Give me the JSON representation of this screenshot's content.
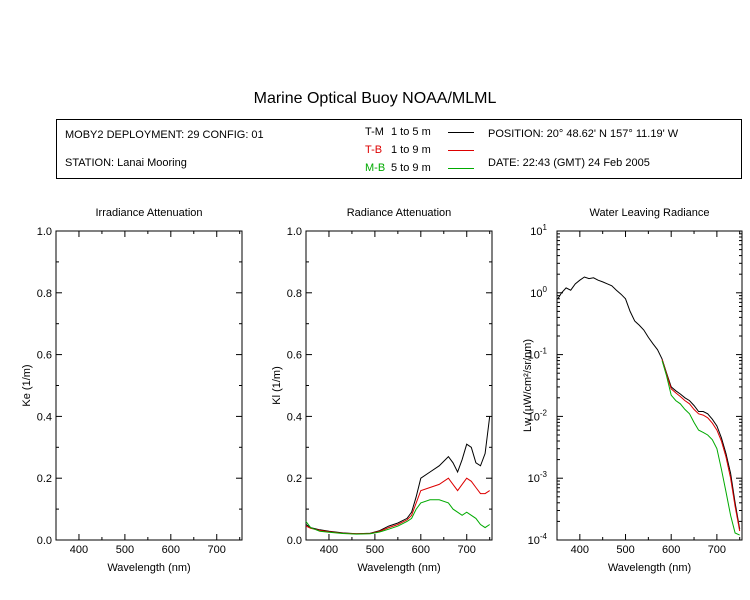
{
  "title": "Marine Optical Buoy NOAA/MLML",
  "info": {
    "deployment": "MOBY2 DEPLOYMENT: 29 CONFIG: 01",
    "station": "STATION: Lanai Mooring",
    "position": "POSITION: 20° 48.62' N   157° 11.19' W",
    "date": "DATE: 22:43 (GMT) 24 Feb 2005"
  },
  "legend": [
    {
      "code": "T-M",
      "range": "1 to 5  m",
      "color": "#000000"
    },
    {
      "code": "T-B",
      "range": "1 to 9  m",
      "color": "#dd0000"
    },
    {
      "code": "M-B",
      "range": "5 to 9  m",
      "color": "#00aa00"
    }
  ],
  "chart_data": [
    {
      "type": "line",
      "title": "Irradiance Attenuation",
      "xlabel": "Wavelength (nm)",
      "ylabel": "Ke  (1/m)",
      "xlim": [
        350,
        755
      ],
      "ylim": [
        0,
        1
      ],
      "xticks": [
        "400",
        "500",
        "600",
        "700"
      ],
      "yticks": [
        "0.0",
        "0.2",
        "0.4",
        "0.6",
        "0.8",
        "1.0"
      ],
      "series": []
    },
    {
      "type": "line",
      "title": "Radiance Attenuation",
      "xlabel": "Wavelength (nm)",
      "ylabel": "Kl  (1/m)",
      "xlim": [
        350,
        755
      ],
      "ylim": [
        0,
        1
      ],
      "xticks": [
        "400",
        "500",
        "600",
        "700"
      ],
      "yticks": [
        "0.0",
        "0.2",
        "0.4",
        "0.6",
        "0.8",
        "1.0"
      ],
      "series": [
        {
          "name": "T-M",
          "color": "#000000",
          "x": [
            350,
            360,
            380,
            400,
            430,
            460,
            490,
            510,
            530,
            550,
            570,
            580,
            590,
            600,
            620,
            640,
            660,
            670,
            680,
            690,
            700,
            710,
            720,
            730,
            740,
            750
          ],
          "y": [
            0.05,
            0.04,
            0.033,
            0.028,
            0.023,
            0.02,
            0.022,
            0.03,
            0.045,
            0.055,
            0.07,
            0.09,
            0.14,
            0.2,
            0.22,
            0.24,
            0.27,
            0.25,
            0.22,
            0.26,
            0.31,
            0.3,
            0.25,
            0.24,
            0.28,
            0.4
          ]
        },
        {
          "name": "T-B",
          "color": "#dd0000",
          "x": [
            350,
            360,
            380,
            400,
            430,
            460,
            490,
            510,
            530,
            550,
            570,
            580,
            590,
            600,
            620,
            640,
            660,
            670,
            680,
            690,
            700,
            710,
            720,
            730,
            740,
            750
          ],
          "y": [
            0.045,
            0.038,
            0.031,
            0.027,
            0.022,
            0.02,
            0.021,
            0.028,
            0.04,
            0.05,
            0.065,
            0.08,
            0.12,
            0.16,
            0.17,
            0.18,
            0.2,
            0.18,
            0.16,
            0.18,
            0.2,
            0.19,
            0.17,
            0.15,
            0.15,
            0.16
          ]
        },
        {
          "name": "M-B",
          "color": "#00aa00",
          "x": [
            350,
            360,
            380,
            400,
            430,
            460,
            490,
            510,
            530,
            550,
            570,
            580,
            590,
            600,
            620,
            640,
            660,
            670,
            680,
            690,
            700,
            710,
            720,
            730,
            740,
            750
          ],
          "y": [
            0.06,
            0.04,
            0.028,
            0.025,
            0.021,
            0.019,
            0.02,
            0.026,
            0.035,
            0.045,
            0.06,
            0.07,
            0.1,
            0.12,
            0.13,
            0.13,
            0.12,
            0.1,
            0.09,
            0.08,
            0.09,
            0.08,
            0.07,
            0.05,
            0.04,
            0.05
          ]
        }
      ]
    },
    {
      "type": "line",
      "title": "Water Leaving Radiance",
      "xlabel": "Wavelength (nm)",
      "ylabel": "Lw  (µW/cm²/sr/nm)",
      "xlim": [
        350,
        755
      ],
      "ylim": [
        0.0001,
        10
      ],
      "yscale": "log",
      "xticks": [
        "400",
        "500",
        "600",
        "700"
      ],
      "yticks": [
        "10-4",
        "10-3",
        "10-2",
        "10-1",
        "100",
        "101"
      ],
      "series": [
        {
          "name": "T-M",
          "color": "#000000",
          "x": [
            352,
            360,
            370,
            380,
            390,
            400,
            410,
            420,
            430,
            440,
            450,
            460,
            470,
            480,
            490,
            500,
            510,
            520,
            530,
            540,
            550,
            560,
            570,
            580,
            590,
            600,
            610,
            620,
            630,
            640,
            650,
            660,
            670,
            680,
            690,
            700,
            710,
            720,
            730,
            740,
            750
          ],
          "y": [
            0.8,
            1.0,
            1.2,
            1.1,
            1.4,
            1.6,
            1.8,
            1.7,
            1.75,
            1.6,
            1.5,
            1.4,
            1.3,
            1.1,
            0.95,
            0.8,
            0.5,
            0.35,
            0.3,
            0.25,
            0.19,
            0.15,
            0.12,
            0.085,
            0.05,
            0.03,
            0.026,
            0.023,
            0.02,
            0.018,
            0.015,
            0.012,
            0.012,
            0.011,
            0.009,
            0.007,
            0.0045,
            0.0025,
            0.0012,
            0.0004,
            0.00015
          ]
        },
        {
          "name": "T-B",
          "color": "#dd0000",
          "x": [
            580,
            590,
            600,
            610,
            620,
            630,
            640,
            650,
            660,
            670,
            680,
            690,
            700,
            710,
            720,
            730,
            740,
            750
          ],
          "y": [
            0.083,
            0.048,
            0.028,
            0.024,
            0.021,
            0.018,
            0.016,
            0.013,
            0.011,
            0.0105,
            0.0095,
            0.0078,
            0.006,
            0.004,
            0.0022,
            0.001,
            0.00035,
            0.00014
          ]
        },
        {
          "name": "M-B",
          "color": "#00aa00",
          "x": [
            580,
            590,
            600,
            610,
            620,
            630,
            640,
            650,
            660,
            670,
            680,
            690,
            700,
            710,
            720,
            730,
            740,
            750
          ],
          "y": [
            0.08,
            0.045,
            0.022,
            0.018,
            0.016,
            0.013,
            0.011,
            0.008,
            0.006,
            0.0055,
            0.005,
            0.0042,
            0.003,
            0.0014,
            0.0006,
            0.00025,
            0.00013,
            0.00012
          ]
        }
      ]
    }
  ]
}
